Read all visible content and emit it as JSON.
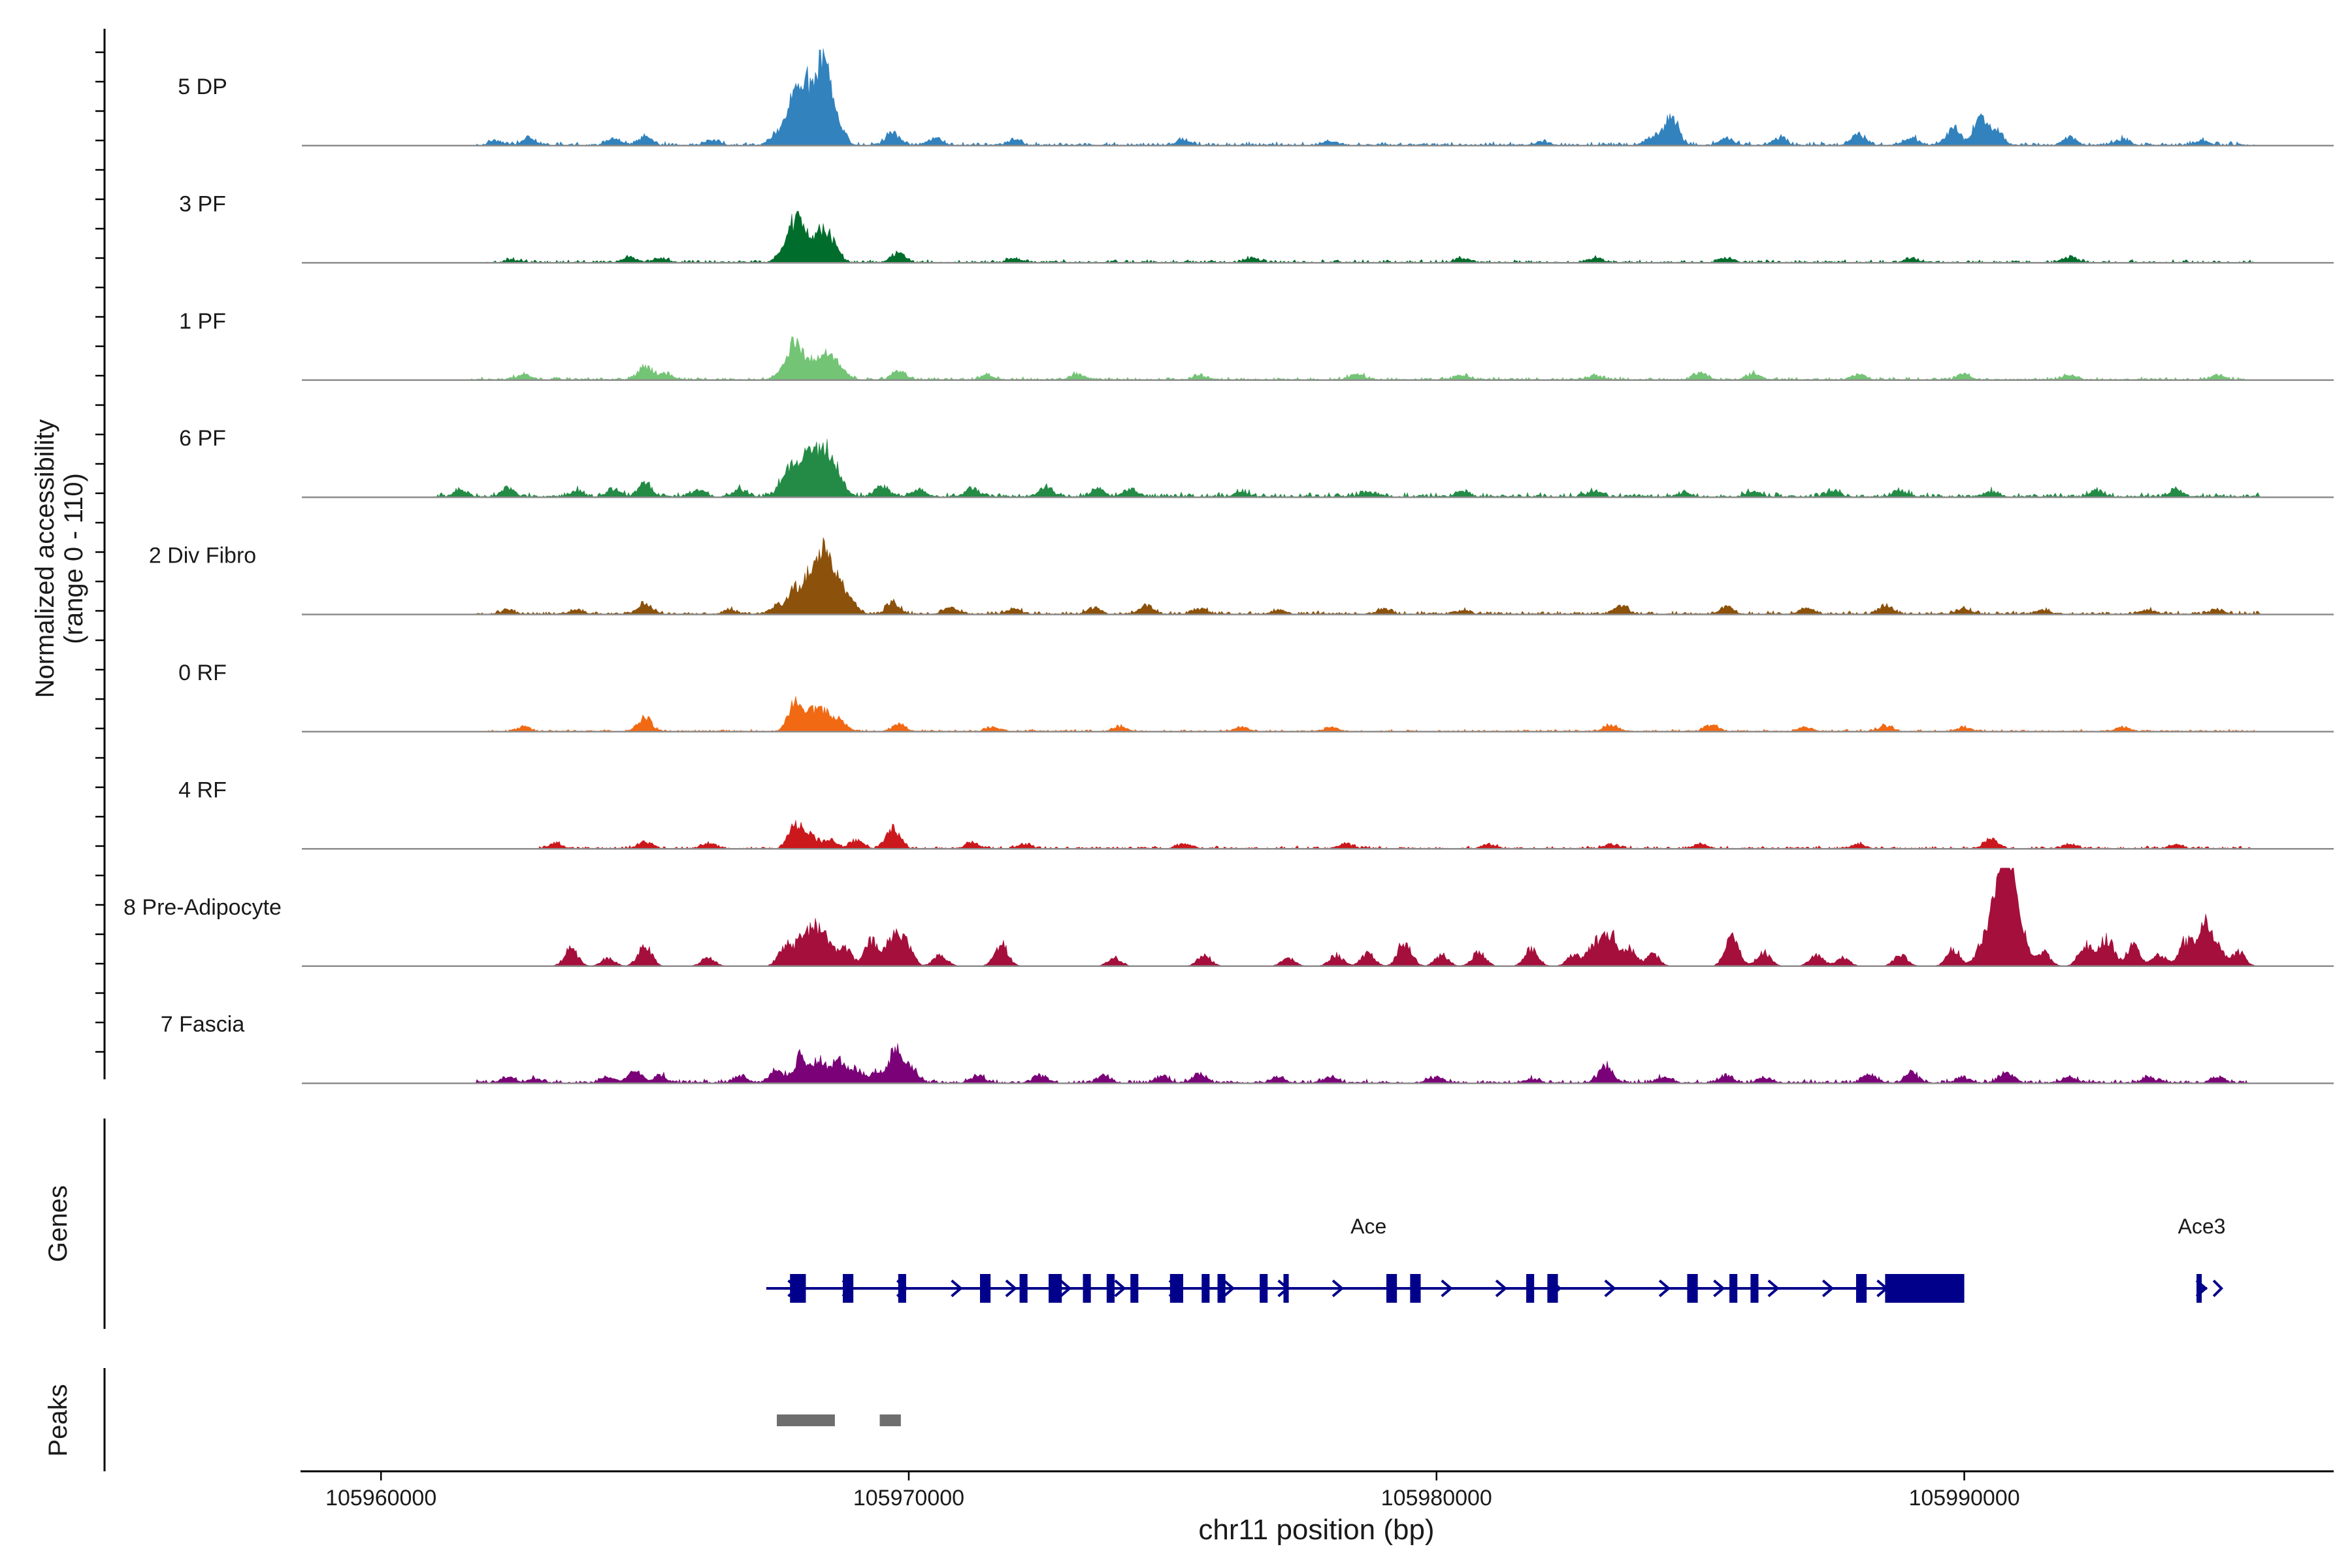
{
  "chart_data": {
    "type": "area",
    "region": "chr11",
    "x_range": [
      105958500,
      105997000
    ],
    "xlabel": "chr11 position (bp)",
    "x_ticks": [
      105960000,
      105970000,
      105980000,
      105990000
    ],
    "x_tick_labels": [
      "105960000",
      "105970000",
      "105980000",
      "105990000"
    ],
    "ylabel_line1": "Normalized accessibility",
    "ylabel_line2": "(range 0 - 110)",
    "y_range": [
      0,
      110
    ],
    "tracks": [
      {
        "name": "5 DP",
        "color": "#3182bd",
        "peaks": [
          [
            105962200,
            3
          ],
          [
            105962800,
            5
          ],
          [
            105964400,
            4
          ],
          [
            105965000,
            6
          ],
          [
            105966300,
            3
          ],
          [
            105967500,
            8
          ],
          [
            105967800,
            28
          ],
          [
            105968050,
            35
          ],
          [
            105968300,
            40
          ],
          [
            105968450,
            32
          ],
          [
            105968650,
            14
          ],
          [
            105969700,
            9
          ],
          [
            105970500,
            5
          ],
          [
            105972000,
            4
          ],
          [
            105975200,
            4
          ],
          [
            105978000,
            3
          ],
          [
            105982000,
            3
          ],
          [
            105984100,
            6
          ],
          [
            105984450,
            22
          ],
          [
            105985500,
            5
          ],
          [
            105986500,
            5
          ],
          [
            105988000,
            8
          ],
          [
            105989000,
            5
          ],
          [
            105989800,
            12
          ],
          [
            105990300,
            20
          ],
          [
            105990600,
            10
          ],
          [
            105992000,
            5
          ],
          [
            105993000,
            4
          ],
          [
            105994500,
            3
          ]
        ],
        "noise": 2.5,
        "start": 105961800,
        "end": 105995500
      },
      {
        "name": "3 PF",
        "color": "#006d2c",
        "peaks": [
          [
            105962500,
            2
          ],
          [
            105964700,
            4
          ],
          [
            105965300,
            3
          ],
          [
            105967600,
            6
          ],
          [
            105967850,
            28
          ],
          [
            105968100,
            14
          ],
          [
            105968350,
            18
          ],
          [
            105968550,
            12
          ],
          [
            105969800,
            7
          ],
          [
            105972000,
            3
          ],
          [
            105976500,
            3
          ],
          [
            105980500,
            3
          ],
          [
            105983000,
            3
          ],
          [
            105985500,
            3
          ],
          [
            105989000,
            3
          ],
          [
            105992000,
            4
          ]
        ],
        "noise": 2,
        "start": 105962000,
        "end": 105995500
      },
      {
        "name": "1 PF",
        "color": "#74c476",
        "peaks": [
          [
            105962700,
            4
          ],
          [
            105965000,
            10
          ],
          [
            105965400,
            4
          ],
          [
            105967600,
            5
          ],
          [
            105967850,
            26
          ],
          [
            105968150,
            12
          ],
          [
            105968450,
            17
          ],
          [
            105968700,
            9
          ],
          [
            105969800,
            6
          ],
          [
            105971500,
            3
          ],
          [
            105973200,
            4
          ],
          [
            105975500,
            3
          ],
          [
            105978500,
            4
          ],
          [
            105980500,
            3
          ],
          [
            105983000,
            3
          ],
          [
            105985000,
            5
          ],
          [
            105986000,
            4
          ],
          [
            105988000,
            4
          ],
          [
            105990000,
            4
          ],
          [
            105992000,
            3
          ],
          [
            105994800,
            3
          ]
        ],
        "noise": 2,
        "start": 105961700,
        "end": 105995300
      },
      {
        "name": "6 PF",
        "color": "#238b45",
        "peaks": [
          [
            105961500,
            5
          ],
          [
            105962400,
            6
          ],
          [
            105963700,
            4
          ],
          [
            105964400,
            5
          ],
          [
            105965000,
            9
          ],
          [
            105966000,
            5
          ],
          [
            105966800,
            5
          ],
          [
            105967650,
            14
          ],
          [
            105967900,
            22
          ],
          [
            105968150,
            24
          ],
          [
            105968400,
            28
          ],
          [
            105968650,
            16
          ],
          [
            105969500,
            8
          ],
          [
            105970200,
            5
          ],
          [
            105971200,
            6
          ],
          [
            105972600,
            6
          ],
          [
            105973600,
            5
          ],
          [
            105974200,
            6
          ],
          [
            105976300,
            4
          ],
          [
            105978700,
            4
          ],
          [
            105980500,
            4
          ],
          [
            105983000,
            4
          ],
          [
            105984700,
            3
          ],
          [
            105986000,
            4
          ],
          [
            105987500,
            4
          ],
          [
            105988800,
            4
          ],
          [
            105990500,
            4
          ],
          [
            105992500,
            4
          ],
          [
            105994000,
            4
          ]
        ],
        "noise": 3,
        "start": 105961000,
        "end": 105995600
      },
      {
        "name": "2 Div Fibro",
        "color": "#8c510a",
        "peaks": [
          [
            105962400,
            3
          ],
          [
            105963700,
            3
          ],
          [
            105965000,
            8
          ],
          [
            105966600,
            3
          ],
          [
            105967500,
            6
          ],
          [
            105967850,
            18
          ],
          [
            105968150,
            25
          ],
          [
            105968400,
            38
          ],
          [
            105968650,
            20
          ],
          [
            105968900,
            8
          ],
          [
            105969700,
            8
          ],
          [
            105970800,
            4
          ],
          [
            105972000,
            4
          ],
          [
            105973500,
            4
          ],
          [
            105974500,
            6
          ],
          [
            105975500,
            4
          ],
          [
            105977000,
            3
          ],
          [
            105979000,
            3
          ],
          [
            105980500,
            3
          ],
          [
            105983500,
            6
          ],
          [
            105985500,
            5
          ],
          [
            105987000,
            4
          ],
          [
            105988500,
            6
          ],
          [
            105990000,
            4
          ],
          [
            105991500,
            3
          ],
          [
            105993500,
            3
          ],
          [
            105994800,
            3
          ]
        ],
        "noise": 2.2,
        "start": 105961800,
        "end": 105995600
      },
      {
        "name": "0 RF",
        "color": "#f16913",
        "peaks": [
          [
            105962700,
            3
          ],
          [
            105965000,
            10
          ],
          [
            105967850,
            22
          ],
          [
            105968150,
            12
          ],
          [
            105968400,
            13
          ],
          [
            105968700,
            7
          ],
          [
            105969800,
            5
          ],
          [
            105971600,
            3
          ],
          [
            105974000,
            3
          ],
          [
            105976300,
            3
          ],
          [
            105978000,
            3
          ],
          [
            105983300,
            5
          ],
          [
            105985200,
            4
          ],
          [
            105987000,
            3
          ],
          [
            105988500,
            4
          ],
          [
            105990000,
            3
          ],
          [
            105993000,
            3
          ]
        ],
        "noise": 1.5,
        "start": 105962000,
        "end": 105995500
      },
      {
        "name": "4 RF",
        "color": "#cb181d",
        "peaks": [
          [
            105963300,
            4
          ],
          [
            105965000,
            5
          ],
          [
            105966200,
            4
          ],
          [
            105967850,
            18
          ],
          [
            105968150,
            8
          ],
          [
            105968500,
            6
          ],
          [
            105969000,
            6
          ],
          [
            105969700,
            14
          ],
          [
            105971200,
            4
          ],
          [
            105972200,
            3
          ],
          [
            105975200,
            3
          ],
          [
            105978300,
            3
          ],
          [
            105981000,
            3
          ],
          [
            105983300,
            3
          ],
          [
            105985000,
            3
          ],
          [
            105988000,
            3
          ],
          [
            105990500,
            7
          ],
          [
            105992000,
            3
          ],
          [
            105994000,
            3
          ]
        ],
        "noise": 1.8,
        "start": 105963000,
        "end": 105995500
      },
      {
        "name": "8 Pre-Adipocyte",
        "color": "#a50f3c",
        "peaks": [
          [
            105963600,
            12
          ],
          [
            105964300,
            6
          ],
          [
            105965000,
            16
          ],
          [
            105966200,
            6
          ],
          [
            105967650,
            14
          ],
          [
            105967950,
            16
          ],
          [
            105968200,
            24
          ],
          [
            105968450,
            18
          ],
          [
            105968800,
            12
          ],
          [
            105969300,
            18
          ],
          [
            105969700,
            20
          ],
          [
            105969950,
            16
          ],
          [
            105970600,
            8
          ],
          [
            105971750,
            16
          ],
          [
            105973900,
            6
          ],
          [
            105975600,
            8
          ],
          [
            105977200,
            6
          ],
          [
            105978100,
            8
          ],
          [
            105978700,
            9
          ],
          [
            105979400,
            18
          ],
          [
            105980100,
            8
          ],
          [
            105980800,
            10
          ],
          [
            105981800,
            12
          ],
          [
            105982600,
            8
          ],
          [
            105983000,
            16
          ],
          [
            105983300,
            22
          ],
          [
            105983650,
            12
          ],
          [
            105984100,
            8
          ],
          [
            105985600,
            22
          ],
          [
            105986200,
            10
          ],
          [
            105987200,
            8
          ],
          [
            105987700,
            6
          ],
          [
            105988800,
            8
          ],
          [
            105989800,
            12
          ],
          [
            105990350,
            16
          ],
          [
            105990650,
            58
          ],
          [
            105990850,
            70
          ],
          [
            105991100,
            18
          ],
          [
            105991500,
            10
          ],
          [
            105992300,
            16
          ],
          [
            105992700,
            20
          ],
          [
            105993200,
            14
          ],
          [
            105993700,
            8
          ],
          [
            105994200,
            18
          ],
          [
            105994550,
            28
          ],
          [
            105994800,
            12
          ],
          [
            105995200,
            10
          ]
        ],
        "noise": 0,
        "start": 105963000,
        "end": 105995500
      },
      {
        "name": "7 Fascia",
        "color": "#7a0177",
        "peaks": [
          [
            105962400,
            4
          ],
          [
            105962900,
            3
          ],
          [
            105964300,
            4
          ],
          [
            105964800,
            9
          ],
          [
            105965300,
            5
          ],
          [
            105966800,
            5
          ],
          [
            105967500,
            9
          ],
          [
            105967950,
            18
          ],
          [
            105968300,
            14
          ],
          [
            105968650,
            15
          ],
          [
            105969000,
            9
          ],
          [
            105969400,
            7
          ],
          [
            105969750,
            22
          ],
          [
            105970050,
            10
          ],
          [
            105971300,
            5
          ],
          [
            105972500,
            5
          ],
          [
            105973700,
            5
          ],
          [
            105974800,
            5
          ],
          [
            105975500,
            6
          ],
          [
            105977000,
            4
          ],
          [
            105978000,
            4
          ],
          [
            105980000,
            4
          ],
          [
            105981800,
            3
          ],
          [
            105983200,
            12
          ],
          [
            105984300,
            4
          ],
          [
            105985500,
            5
          ],
          [
            105986200,
            4
          ],
          [
            105988200,
            6
          ],
          [
            105989000,
            7
          ],
          [
            105990000,
            4
          ],
          [
            105990800,
            8
          ],
          [
            105992000,
            4
          ],
          [
            105993500,
            4
          ],
          [
            105994800,
            4
          ]
        ],
        "noise": 2.5,
        "start": 105961800,
        "end": 105995400
      }
    ],
    "genes_label": "Genes",
    "genes": [
      {
        "name": "Ace",
        "start": 105967300,
        "end": 105990000,
        "strand": "+",
        "exons": [
          [
            105967750,
            105968050
          ],
          [
            105968750,
            105968950
          ],
          [
            105969800,
            105969950
          ],
          [
            105971350,
            105971550
          ],
          [
            105972100,
            105972250
          ],
          [
            105972650,
            105972900
          ],
          [
            105973300,
            105973450
          ],
          [
            105973750,
            105973900
          ],
          [
            105974200,
            105974350
          ],
          [
            105974950,
            105975200
          ],
          [
            105975550,
            105975700
          ],
          [
            105975850,
            105976000
          ],
          [
            105976650,
            105976800
          ],
          [
            105977100,
            105977200
          ],
          [
            105979050,
            105979250
          ],
          [
            105979500,
            105979700
          ],
          [
            105981700,
            105981850
          ],
          [
            105982100,
            105982300
          ],
          [
            105984750,
            105984950
          ],
          [
            105985550,
            105985700
          ],
          [
            105985950,
            105986100
          ],
          [
            105987950,
            105988150
          ],
          [
            105988500,
            105990000
          ]
        ]
      },
      {
        "name": "Ace3",
        "start": 105994400,
        "end": 105994600,
        "strand": "+",
        "exons": [
          [
            105994400,
            105994480
          ]
        ]
      }
    ],
    "peaks_label": "Peaks",
    "peak_regions": [
      [
        105967500,
        105968600
      ],
      [
        105969450,
        105969850
      ]
    ]
  }
}
